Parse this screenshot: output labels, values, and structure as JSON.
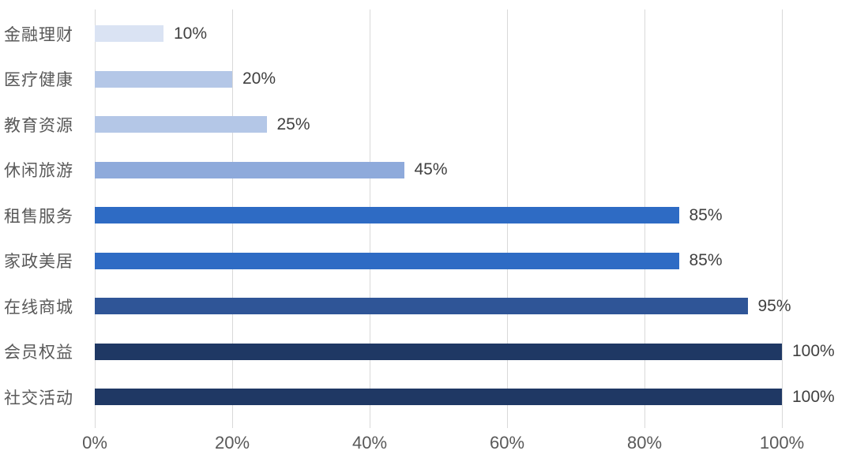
{
  "chart_data": {
    "type": "bar",
    "orientation": "horizontal",
    "title": "",
    "xlabel": "",
    "ylabel": "",
    "categories": [
      "金融理财",
      "医疗健康",
      "教育资源",
      "休闲旅游",
      "租售服务",
      "家政美居",
      "在线商城",
      "会员权益",
      "社交活动"
    ],
    "values": [
      10,
      20,
      25,
      45,
      85,
      85,
      95,
      100,
      100
    ],
    "value_labels": [
      "10%",
      "20%",
      "25%",
      "45%",
      "85%",
      "85%",
      "95%",
      "100%",
      "100%"
    ],
    "bar_colors": [
      "#DAE3F3",
      "#B4C7E7",
      "#B4C7E7",
      "#8EAADB",
      "#2E6BC4",
      "#2E6BC4",
      "#2F5597",
      "#1F3864",
      "#1F3864"
    ],
    "x_ticks": [
      "0%",
      "20%",
      "40%",
      "60%",
      "80%",
      "100%"
    ],
    "x_tick_values": [
      0,
      20,
      40,
      60,
      80,
      100
    ],
    "xlim": [
      0,
      100
    ],
    "grid": "vertical",
    "legend": "none",
    "colors": {
      "gridline": "#D9D9D9",
      "category_label": "#595959",
      "value_label": "#404040",
      "axis_label": "#595959",
      "background": "#FFFFFF"
    }
  }
}
